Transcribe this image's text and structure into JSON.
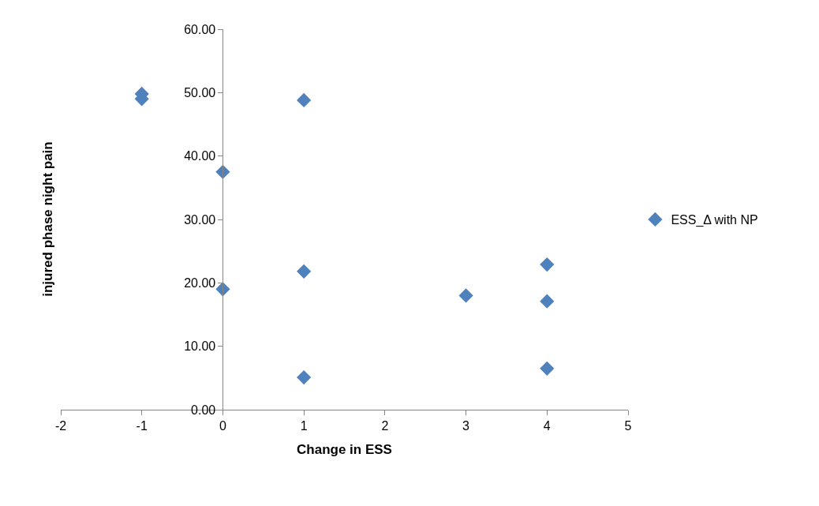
{
  "chart_data": {
    "type": "scatter",
    "xlabel": "Change in ESS",
    "ylabel": "injured phase night pain",
    "series": [
      {
        "name": "ESS_Δ with NP",
        "color": "#4f81bd",
        "x": [
          -1,
          -1,
          1,
          0,
          0,
          1,
          1,
          3,
          4,
          4,
          4
        ],
        "values": [
          49.8,
          49.0,
          48.8,
          37.5,
          19.0,
          21.8,
          5.1,
          18.0,
          22.9,
          17.1,
          6.5
        ]
      }
    ],
    "xlim": [
      -2,
      5
    ],
    "xticks": [
      -2,
      -1,
      0,
      1,
      2,
      3,
      4,
      5
    ],
    "ylim": [
      0,
      60
    ],
    "yticks": [
      {
        "value": 0,
        "label": "0.00"
      },
      {
        "value": 10,
        "label": "10.00"
      },
      {
        "value": 20,
        "label": "20.00"
      },
      {
        "value": 30,
        "label": "30.00"
      },
      {
        "value": 40,
        "label": "40.00"
      },
      {
        "value": 50,
        "label": "50.00"
      },
      {
        "value": 60,
        "label": "60.00"
      }
    ],
    "marker": "diamond",
    "legend": "right"
  }
}
